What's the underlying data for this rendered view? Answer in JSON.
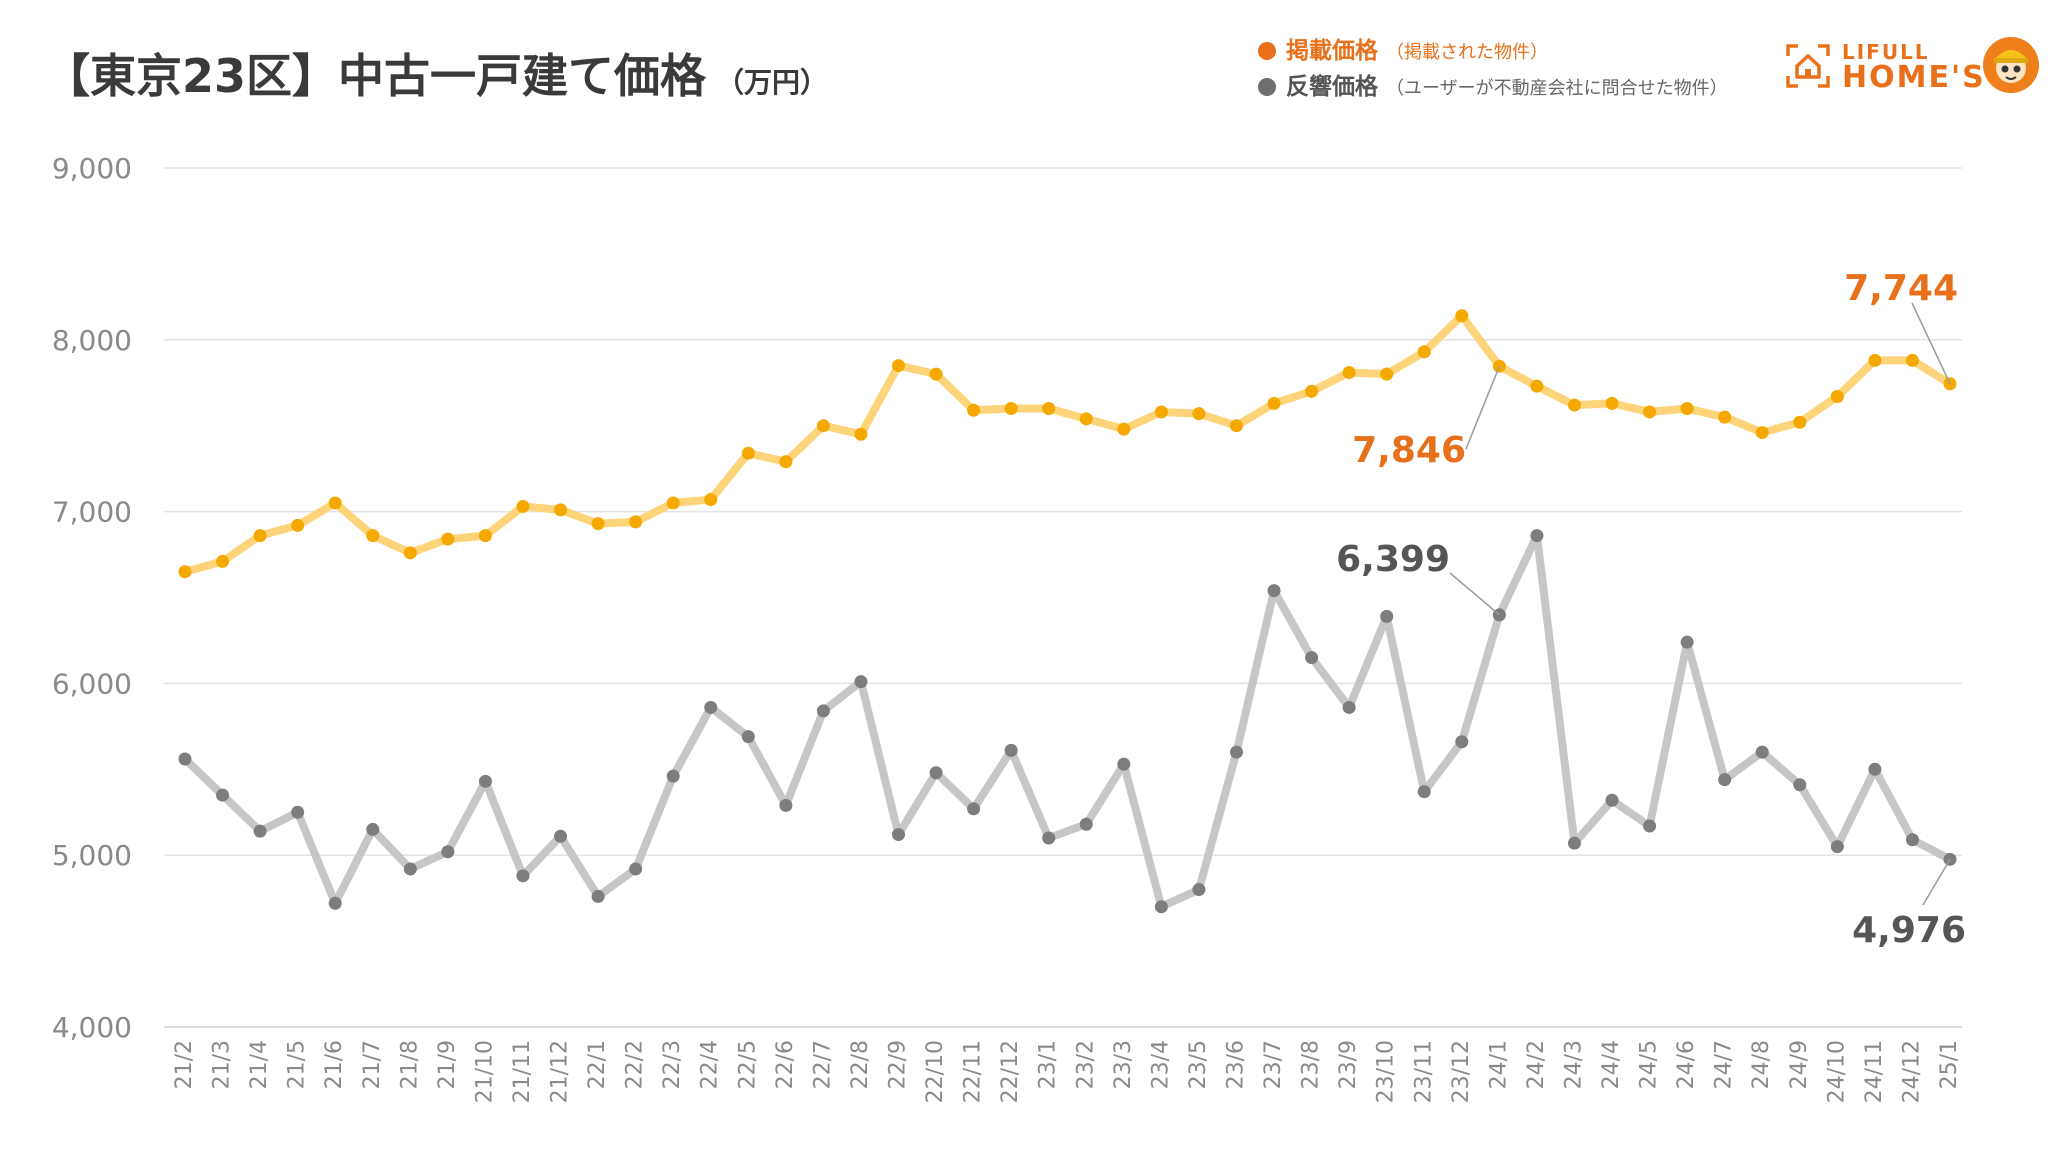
{
  "title": "【東京23区】中古一戸建て価格",
  "title_unit": "（万円）",
  "legend": [
    {
      "name": "掲載価格",
      "note": "（掲載された物件）",
      "color": "#e8701a",
      "text_color": "#e8701a"
    },
    {
      "name": "反響価格",
      "note": "（ユーザーが不動産会社に問合せた物件）",
      "color": "#6e6e6e",
      "text_color": "#555555"
    }
  ],
  "logo": {
    "line1": "LIFULL",
    "line2": "HOME'S",
    "color": "#e8701a",
    "mascot": "mascot-icon"
  },
  "chart_data": {
    "type": "line",
    "title": "【東京23区】中古一戸建て価格",
    "ylabel": "（万円）",
    "ylim": [
      4000,
      9000
    ],
    "yticks": [
      4000,
      5000,
      6000,
      7000,
      8000,
      9000
    ],
    "grid": true,
    "legend_position": "top-right",
    "categories": [
      "21/2",
      "21/3",
      "21/4",
      "21/5",
      "21/6",
      "21/7",
      "21/8",
      "21/9",
      "21/10",
      "21/11",
      "21/12",
      "22/1",
      "22/2",
      "22/3",
      "22/4",
      "22/5",
      "22/6",
      "22/7",
      "22/8",
      "22/9",
      "22/10",
      "22/11",
      "22/12",
      "23/1",
      "23/2",
      "23/3",
      "23/4",
      "23/5",
      "23/6",
      "23/7",
      "23/8",
      "23/9",
      "23/10",
      "23/11",
      "23/12",
      "24/1",
      "24/2",
      "24/3",
      "24/4",
      "24/5",
      "24/6",
      "24/7",
      "24/8",
      "24/9",
      "24/10",
      "24/11",
      "24/12",
      "25/1"
    ],
    "series": [
      {
        "name": "掲載価格",
        "line_color": "#fdd47a",
        "point_color": "#f5a800",
        "values": [
          6650,
          6710,
          6860,
          6920,
          7050,
          6860,
          6760,
          6840,
          6860,
          7030,
          7010,
          6930,
          6940,
          7050,
          7070,
          7340,
          7290,
          7500,
          7450,
          7850,
          7800,
          7590,
          7600,
          7600,
          7540,
          7480,
          7580,
          7570,
          7500,
          7630,
          7700,
          7810,
          7800,
          7930,
          8140,
          7846,
          7730,
          7620,
          7630,
          7580,
          7600,
          7550,
          7460,
          7520,
          7670,
          7880,
          7880,
          7744
        ]
      },
      {
        "name": "反響価格",
        "line_color": "#c6c6c6",
        "point_color": "#7d7d7d",
        "values": [
          5560,
          5350,
          5140,
          5250,
          4720,
          5150,
          4920,
          5020,
          5430,
          4880,
          5110,
          4760,
          4920,
          5460,
          5860,
          5690,
          5290,
          5840,
          6010,
          5120,
          5480,
          5270,
          5610,
          5100,
          5180,
          5530,
          4700,
          4800,
          5600,
          6540,
          6150,
          5860,
          6390,
          5370,
          5660,
          6399,
          6860,
          5070,
          5320,
          5170,
          6240,
          5440,
          5600,
          5410,
          5050,
          5500,
          5090,
          4976
        ]
      }
    ],
    "annotations": [
      {
        "series": 0,
        "index": 35,
        "label": "7,846",
        "color": "#e8701a"
      },
      {
        "series": 0,
        "index": 47,
        "label": "7,744",
        "color": "#e8701a"
      },
      {
        "series": 1,
        "index": 35,
        "label": "6,399",
        "color": "#555555"
      },
      {
        "series": 1,
        "index": 47,
        "label": "4,976",
        "color": "#555555"
      }
    ]
  }
}
